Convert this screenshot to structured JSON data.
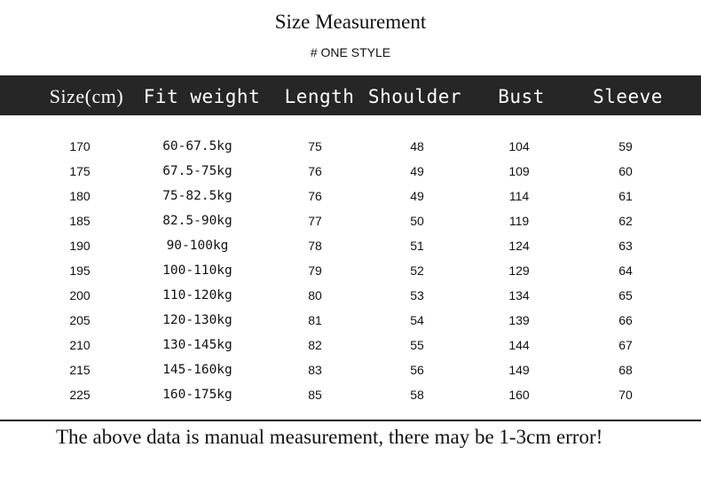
{
  "title": "Size Measurement",
  "subtitle": "# ONE STYLE",
  "columns": [
    "Size(cm)",
    "Fit weight",
    "Length",
    "Shoulder",
    "Bust",
    "Sleeve"
  ],
  "rows": [
    [
      "170",
      "60-67.5kg",
      "75",
      "48",
      "104",
      "59"
    ],
    [
      "175",
      "67.5-75kg",
      "76",
      "49",
      "109",
      "60"
    ],
    [
      "180",
      "75-82.5kg",
      "76",
      "49",
      "114",
      "61"
    ],
    [
      "185",
      "82.5-90kg",
      "77",
      "50",
      "119",
      "62"
    ],
    [
      "190",
      "90-100kg",
      "78",
      "51",
      "124",
      "63"
    ],
    [
      "195",
      "100-110kg",
      "79",
      "52",
      "129",
      "64"
    ],
    [
      "200",
      "110-120kg",
      "80",
      "53",
      "134",
      "65"
    ],
    [
      "205",
      "120-130kg",
      "81",
      "54",
      "139",
      "66"
    ],
    [
      "210",
      "130-145kg",
      "82",
      "55",
      "144",
      "67"
    ],
    [
      "215",
      "145-160kg",
      "83",
      "56",
      "149",
      "68"
    ],
    [
      "225",
      "160-175kg",
      "85",
      "58",
      "160",
      "70"
    ]
  ],
  "note": "The above data is manual measurement, there may be 1-3cm error!",
  "colors": {
    "header_bg": "#262626",
    "header_text": "#ffffff",
    "text": "#111111"
  }
}
